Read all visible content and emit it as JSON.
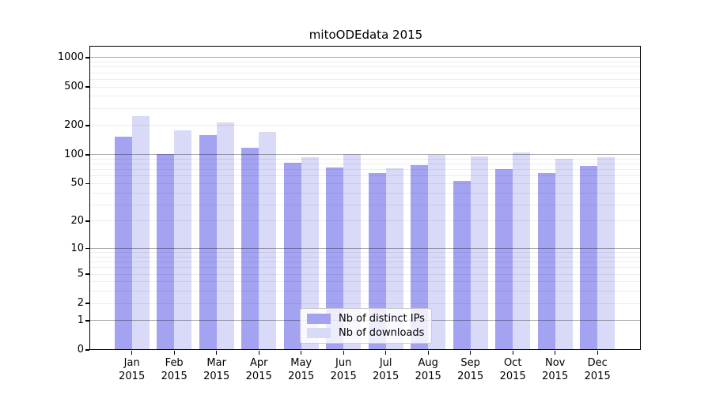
{
  "title": "mitoODEdata 2015",
  "chart_data": {
    "type": "bar",
    "title": "mitoODEdata 2015",
    "categories": [
      "Jan",
      "Feb",
      "Mar",
      "Apr",
      "May",
      "Jun",
      "Jul",
      "Aug",
      "Sep",
      "Oct",
      "Nov",
      "Dec"
    ],
    "category_year": "2015",
    "series": [
      {
        "name": "Nb of distinct IPs",
        "color": "#a3a3f1",
        "values": [
          155,
          101,
          161,
          119,
          83,
          73,
          65,
          78,
          53,
          71,
          65,
          76
        ]
      },
      {
        "name": "Nb of downloads",
        "color": "#d9d9f8",
        "values": [
          252,
          180,
          214,
          172,
          94,
          101,
          72,
          100,
          96,
          106,
          91,
          95
        ]
      }
    ],
    "yscale": "log1p",
    "ylim": [
      0,
      1320
    ],
    "yticks": [
      0,
      1,
      2,
      5,
      10,
      20,
      50,
      100,
      200,
      500,
      1000
    ],
    "grid": {
      "major": [
        1,
        10,
        100,
        1000
      ],
      "minor": [
        2,
        3,
        4,
        5,
        6,
        7,
        8,
        9,
        20,
        30,
        40,
        50,
        60,
        70,
        80,
        90,
        200,
        300,
        400,
        500,
        600,
        700,
        800,
        900
      ]
    },
    "legend_position": "lower center"
  },
  "colors": {
    "axis": "#000000",
    "major_grid": "#b0b0b0",
    "minor_grid": "#ededed",
    "legend_border": "#cccccc",
    "background": "#ffffff"
  }
}
